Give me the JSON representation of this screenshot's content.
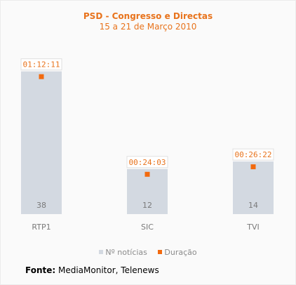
{
  "chart_data": {
    "type": "bar",
    "title": "PSD - Congresso e Directas",
    "subtitle": "15 a 21 de Março 2010",
    "categories": [
      "RTP1",
      "SIC",
      "TVI"
    ],
    "series": [
      {
        "name": "Nº notícias",
        "values": [
          38,
          12,
          14
        ],
        "color": "#d3d9e1",
        "style": "bar"
      },
      {
        "name": "Duração",
        "values": [
          "01:12:11",
          "00:24:03",
          "00:26:22"
        ],
        "color": "#f26a0f",
        "style": "marker"
      }
    ],
    "ylim": [
      0,
      40
    ],
    "grid": false,
    "legend_position": "bottom"
  },
  "source": {
    "label": "Fonte:",
    "text": " MediaMonitor, Telenews"
  },
  "colors": {
    "accent": "#e8731c",
    "bar": "#d3d9e1",
    "marker": "#f26a0f",
    "axis_text": "#7a7a7a"
  }
}
